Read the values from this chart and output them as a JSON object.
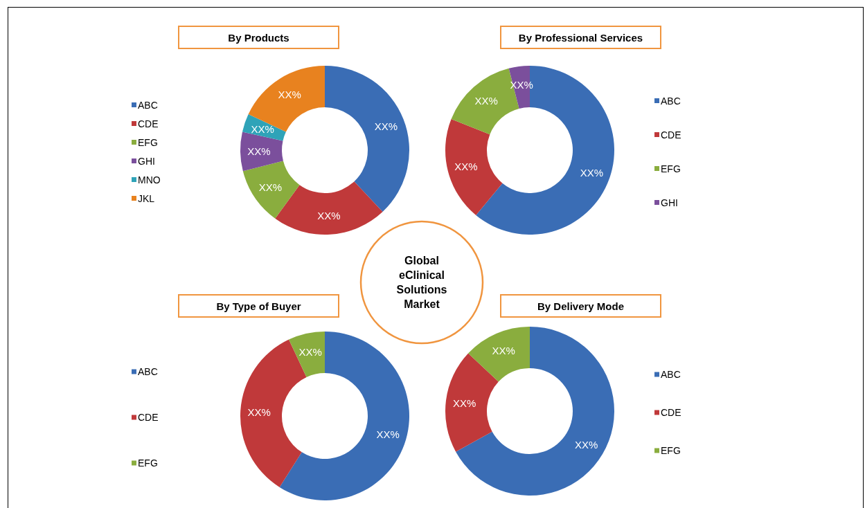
{
  "chart_data": [
    {
      "type": "donut",
      "title": "By Products",
      "categories": [
        "ABC",
        "CDE",
        "EFG",
        "GHI",
        "MNO",
        "JKL"
      ],
      "values": [
        38,
        22,
        11,
        7.5,
        3.5,
        18
      ],
      "colors": [
        "#3a6db5",
        "#c0393a",
        "#8aad3e",
        "#7b4f9c",
        "#2fa3b8",
        "#e8821f"
      ],
      "value_labels": [
        "XX%",
        "XX%",
        "XX%",
        "XX%",
        "XX%",
        "XX%"
      ],
      "legend": "left"
    },
    {
      "type": "donut",
      "title": "By Professional Services",
      "categories": [
        "ABC",
        "CDE",
        "EFG",
        "GHI"
      ],
      "values": [
        61,
        20,
        15,
        4
      ],
      "colors": [
        "#3a6db5",
        "#c0393a",
        "#8aad3e",
        "#7b4f9c"
      ],
      "value_labels": [
        "XX%",
        "XX%",
        "XX%",
        "XX%"
      ],
      "legend": "right"
    },
    {
      "type": "donut",
      "title": "By Type of Buyer",
      "categories": [
        "ABC",
        "CDE",
        "EFG"
      ],
      "values": [
        59,
        34,
        7
      ],
      "colors": [
        "#3a6db5",
        "#c0393a",
        "#8aad3e"
      ],
      "value_labels": [
        "XX%",
        "XX%",
        "XX%"
      ],
      "legend": "left"
    },
    {
      "type": "donut",
      "title": "By Delivery Mode",
      "categories": [
        "ABC",
        "CDE",
        "EFG"
      ],
      "values": [
        67,
        20,
        13
      ],
      "colors": [
        "#3a6db5",
        "#c0393a",
        "#8aad3e"
      ],
      "value_labels": [
        "XX%",
        "XX%",
        "XX%"
      ],
      "legend": "right"
    },
    {
      "type": "other",
      "title": "Global eClinical Solutions Market"
    }
  ]
}
